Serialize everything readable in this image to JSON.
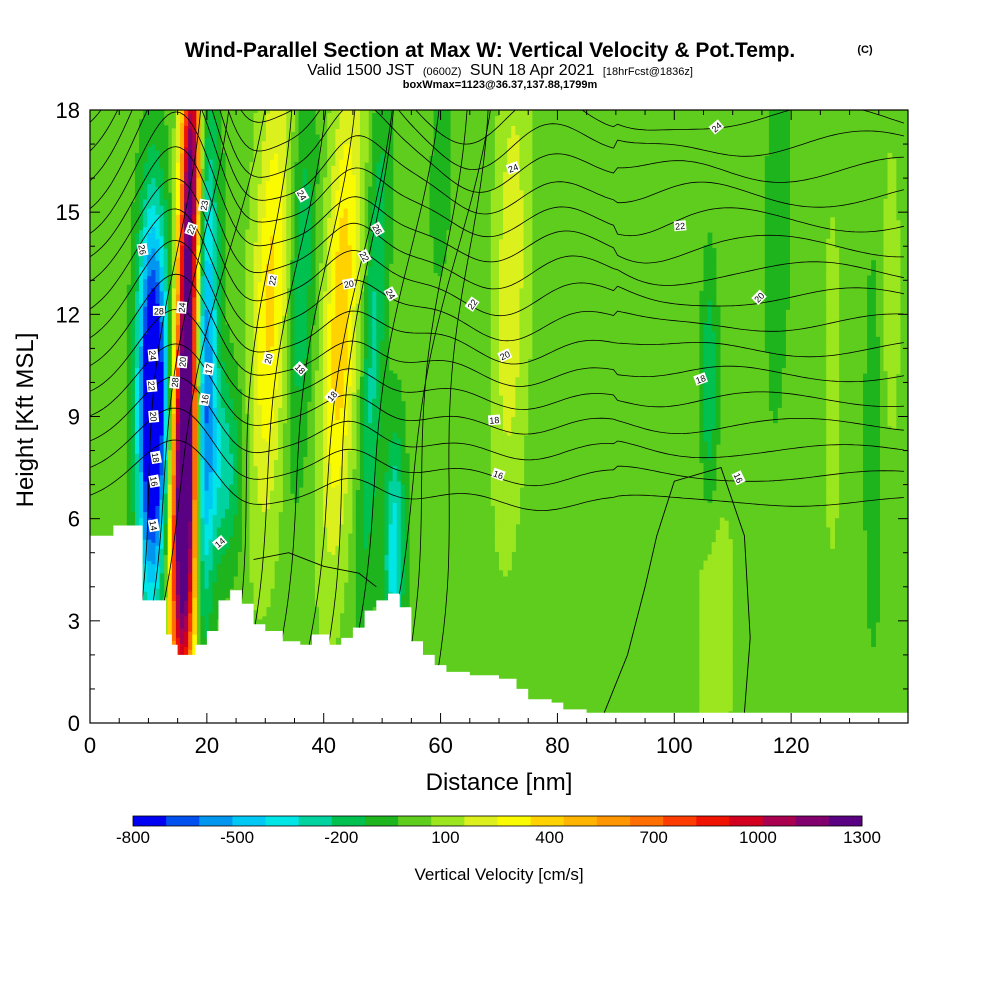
{
  "title": {
    "main": "Wind-Parallel Section at Max W: Vertical Velocity & Pot.Temp.",
    "copyright": "(C)",
    "valid_prefix": "Valid 1500 JST",
    "valid_utc": "(0600Z)",
    "valid_date": "SUN 18 Apr 2021",
    "forecast": "[18hrFcst@1836z]",
    "box_info": "boxWmax=1123@36.37,137.88,1799m"
  },
  "chart_data": {
    "type": "heatmap",
    "xlabel": "Distance [nm]",
    "ylabel": "Height [Kft MSL]",
    "xlim": [
      0,
      140
    ],
    "ylim": [
      0,
      18
    ],
    "x_ticks": [
      "0",
      "20",
      "40",
      "60",
      "80",
      "100",
      "120"
    ],
    "x_tick_values": [
      0,
      20,
      40,
      60,
      80,
      100,
      120
    ],
    "y_ticks": [
      "0",
      "3",
      "6",
      "9",
      "12",
      "15",
      "18"
    ],
    "y_tick_values": [
      0,
      3,
      6,
      9,
      12,
      15,
      18
    ],
    "colorbar": {
      "title": "Vertical Velocity [cm/s]",
      "labels": [
        "-800",
        "-500",
        "-200",
        "100",
        "400",
        "700",
        "1000",
        "1300"
      ],
      "label_values": [
        -800,
        -500,
        -200,
        100,
        400,
        700,
        1000,
        1300
      ],
      "levels": [
        -800,
        -700,
        -600,
        -500,
        -400,
        -300,
        -200,
        -100,
        0,
        100,
        200,
        300,
        400,
        500,
        600,
        700,
        800,
        900,
        1000,
        1100,
        1200,
        1300
      ],
      "colors": [
        "#0000f2",
        "#0050f0",
        "#0096f0",
        "#00c8f5",
        "#00e6e6",
        "#00d2a0",
        "#00c050",
        "#1eb41e",
        "#5fcd1e",
        "#9be61e",
        "#dcf01e",
        "#fafa00",
        "#ffd200",
        "#ffb400",
        "#ff9600",
        "#ff6e00",
        "#ff3c00",
        "#f01400",
        "#d2001e",
        "#aa0050",
        "#82006e",
        "#5a0082"
      ]
    },
    "terrain": [
      [
        0,
        5.5
      ],
      [
        2,
        5.5
      ],
      [
        4,
        5.8
      ],
      [
        7,
        5.8
      ],
      [
        9,
        3.6
      ],
      [
        13,
        2.6
      ],
      [
        14,
        2.3
      ],
      [
        15,
        2.0
      ],
      [
        18,
        2.3
      ],
      [
        20,
        2.7
      ],
      [
        22,
        3.6
      ],
      [
        24,
        3.9
      ],
      [
        26,
        3.5
      ],
      [
        28,
        2.9
      ],
      [
        30,
        2.7
      ],
      [
        33,
        2.4
      ],
      [
        36,
        2.3
      ],
      [
        38,
        2.6
      ],
      [
        41,
        2.3
      ],
      [
        43,
        2.5
      ],
      [
        45,
        2.8
      ],
      [
        47,
        3.3
      ],
      [
        49,
        3.6
      ],
      [
        51,
        3.8
      ],
      [
        53,
        3.4
      ],
      [
        55,
        2.4
      ],
      [
        57,
        2.0
      ],
      [
        59,
        1.7
      ],
      [
        61,
        1.5
      ],
      [
        65,
        1.4
      ],
      [
        70,
        1.3
      ],
      [
        73,
        1.0
      ],
      [
        75,
        0.7
      ],
      [
        79,
        0.6
      ],
      [
        81,
        0.4
      ],
      [
        85,
        0.3
      ],
      [
        95,
        0.3
      ],
      [
        140,
        0.3
      ]
    ],
    "w_features": [
      {
        "x": 11.0,
        "y": 8.5,
        "sx": 1.8,
        "sy": 3.6,
        "angle": -6,
        "w": -950
      },
      {
        "x": 10.0,
        "y": 12.0,
        "sx": 1.6,
        "sy": 3.2,
        "angle": -6,
        "w": -350
      },
      {
        "x": 16.0,
        "y": 5.5,
        "sx": 1.6,
        "sy": 4.0,
        "angle": -4,
        "w": 1250
      },
      {
        "x": 16.8,
        "y": 12.0,
        "sx": 1.3,
        "sy": 5.0,
        "angle": -4,
        "w": 1100
      },
      {
        "x": 17.5,
        "y": 17.0,
        "sx": 1.0,
        "sy": 2.5,
        "angle": -4,
        "w": 600
      },
      {
        "x": 19.6,
        "y": 10.0,
        "sx": 1.4,
        "sy": 5.0,
        "angle": -5,
        "w": -700
      },
      {
        "x": 23.0,
        "y": 7.5,
        "sx": 2.2,
        "sy": 2.0,
        "angle": 0,
        "w": -300
      },
      {
        "x": 31.0,
        "y": 12.5,
        "sx": 2.2,
        "sy": 4.8,
        "angle": -14,
        "w": 380
      },
      {
        "x": 36.0,
        "y": 13.0,
        "sx": 1.6,
        "sy": 4.0,
        "angle": -12,
        "w": -250
      },
      {
        "x": 43.0,
        "y": 12.0,
        "sx": 2.0,
        "sy": 5.0,
        "angle": -15,
        "w": 430
      },
      {
        "x": 48.5,
        "y": 11.0,
        "sx": 1.3,
        "sy": 5.5,
        "angle": -13,
        "w": -280
      },
      {
        "x": 52.0,
        "y": 5.0,
        "sx": 1.2,
        "sy": 2.5,
        "angle": -5,
        "w": -420
      },
      {
        "x": 60.0,
        "y": 16.0,
        "sx": 1.4,
        "sy": 2.5,
        "angle": -10,
        "w": -100
      },
      {
        "x": 72.0,
        "y": 13.0,
        "sx": 2.0,
        "sy": 5.0,
        "angle": -8,
        "w": 230
      },
      {
        "x": 80.0,
        "y": 10.0,
        "sx": 2.5,
        "sy": 6.0,
        "angle": -5,
        "w": 30
      },
      {
        "x": 92.0,
        "y": 8.0,
        "sx": 3.0,
        "sy": 7.0,
        "angle": -3,
        "w": 20
      },
      {
        "x": 100.0,
        "y": 12.0,
        "sx": 2.5,
        "sy": 6.0,
        "angle": 0,
        "w": 40
      },
      {
        "x": 106.0,
        "y": 10.0,
        "sx": 1.0,
        "sy": 2.5,
        "angle": 0,
        "w": -250
      },
      {
        "x": 107.0,
        "y": 2.5,
        "sx": 2.0,
        "sy": 2.5,
        "angle": 0,
        "w": 150
      },
      {
        "x": 111.0,
        "y": 11.0,
        "sx": 2.0,
        "sy": 5.0,
        "angle": 0,
        "w": 40
      },
      {
        "x": 117.0,
        "y": 13.0,
        "sx": 2.0,
        "sy": 6.0,
        "angle": 0,
        "w": -60
      },
      {
        "x": 118.5,
        "y": 15.5,
        "sx": 1.5,
        "sy": 3.0,
        "angle": -5,
        "w": -50
      },
      {
        "x": 127.0,
        "y": 10.0,
        "sx": 2.2,
        "sy": 8.0,
        "angle": 0,
        "w": 60
      },
      {
        "x": 134.0,
        "y": 8.0,
        "sx": 1.6,
        "sy": 6.0,
        "angle": 0,
        "w": -80
      },
      {
        "x": 137.0,
        "y": 12.5,
        "sx": 1.0,
        "sy": 3.0,
        "angle": 0,
        "w": 150
      }
    ],
    "contour_labels": [
      {
        "text": "26",
        "x": 9.0,
        "y": 13.9,
        "angle": 80
      },
      {
        "text": "28",
        "x": 11.8,
        "y": 12.1,
        "angle": 0
      },
      {
        "text": "24",
        "x": 10.8,
        "y": 10.8,
        "angle": 85
      },
      {
        "text": "22",
        "x": 10.6,
        "y": 9.9,
        "angle": 85
      },
      {
        "text": "20",
        "x": 10.9,
        "y": 9.0,
        "angle": 85
      },
      {
        "text": "18",
        "x": 11.3,
        "y": 7.8,
        "angle": 80
      },
      {
        "text": "16",
        "x": 11.0,
        "y": 7.1,
        "angle": 80
      },
      {
        "text": "14",
        "x": 10.9,
        "y": 5.8,
        "angle": 80
      },
      {
        "text": "22",
        "x": 17.3,
        "y": 14.5,
        "angle": -70
      },
      {
        "text": "24",
        "x": 15.7,
        "y": 12.2,
        "angle": -85
      },
      {
        "text": "20",
        "x": 15.8,
        "y": 10.6,
        "angle": -85
      },
      {
        "text": "28",
        "x": 14.5,
        "y": 10.0,
        "angle": -85
      },
      {
        "text": "23",
        "x": 19.5,
        "y": 15.2,
        "angle": -80
      },
      {
        "text": "17",
        "x": 20.3,
        "y": 10.4,
        "angle": -80
      },
      {
        "text": "16",
        "x": 19.6,
        "y": 9.5,
        "angle": -80
      },
      {
        "text": "14",
        "x": 22.2,
        "y": 5.3,
        "angle": -40
      },
      {
        "text": "22",
        "x": 31.2,
        "y": 13.0,
        "angle": -80
      },
      {
        "text": "20",
        "x": 30.5,
        "y": 10.7,
        "angle": -75
      },
      {
        "text": "24",
        "x": 36.3,
        "y": 15.5,
        "angle": 60
      },
      {
        "text": "18",
        "x": 36.0,
        "y": 10.4,
        "angle": 45
      },
      {
        "text": "18",
        "x": 41.4,
        "y": 9.6,
        "angle": -50
      },
      {
        "text": "20",
        "x": 44.3,
        "y": 12.9,
        "angle": -10
      },
      {
        "text": "26",
        "x": 49.2,
        "y": 14.5,
        "angle": 60
      },
      {
        "text": "22",
        "x": 47.0,
        "y": 13.7,
        "angle": 60
      },
      {
        "text": "24",
        "x": 51.5,
        "y": 12.6,
        "angle": 60
      },
      {
        "text": "22",
        "x": 65.4,
        "y": 12.3,
        "angle": -55
      },
      {
        "text": "20",
        "x": 71.0,
        "y": 10.8,
        "angle": -25
      },
      {
        "text": "18",
        "x": 69.2,
        "y": 8.9,
        "angle": -5
      },
      {
        "text": "16",
        "x": 69.9,
        "y": 7.3,
        "angle": 20
      },
      {
        "text": "24",
        "x": 72.4,
        "y": 16.3,
        "angle": -20
      },
      {
        "text": "24",
        "x": 107.2,
        "y": 17.5,
        "angle": -40
      },
      {
        "text": "22",
        "x": 101.0,
        "y": 14.6,
        "angle": -5
      },
      {
        "text": "20",
        "x": 114.5,
        "y": 12.5,
        "angle": -45
      },
      {
        "text": "18",
        "x": 104.5,
        "y": 10.1,
        "angle": -20
      },
      {
        "text": "16",
        "x": 111.0,
        "y": 7.2,
        "angle": 65
      }
    ]
  }
}
